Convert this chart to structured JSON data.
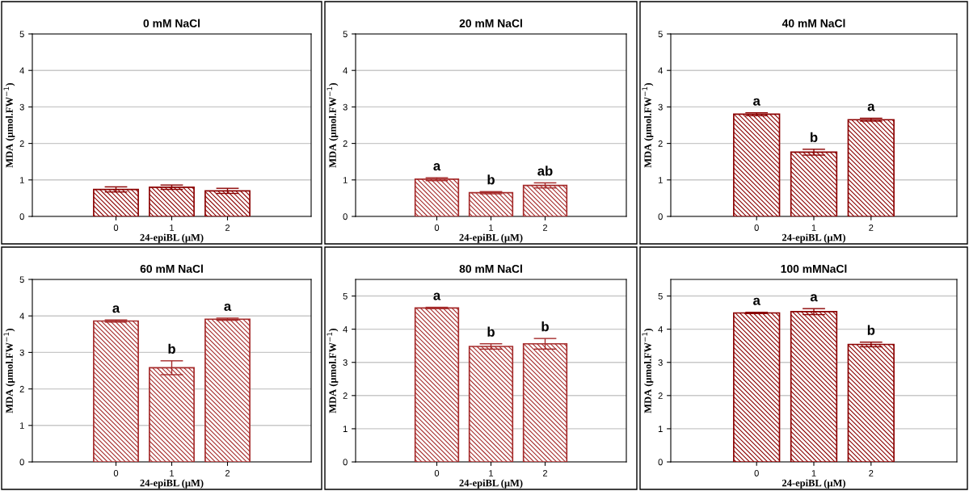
{
  "chart_data": [
    {
      "type": "bar",
      "title": "0 mM NaCl",
      "xlabel": "24-epiBL (µM)",
      "ylabel": "MDA (µmol.FW$^{−1}$)",
      "categories": [
        "0",
        "1",
        "2"
      ],
      "values": [
        0.74,
        0.8,
        0.7
      ],
      "errors": [
        0.07,
        0.06,
        0.07
      ],
      "color": "#8b0000",
      "ylim": [
        0,
        5
      ],
      "yticks": [
        0,
        1,
        2,
        3,
        4,
        5
      ],
      "grid": "y"
    },
    {
      "type": "bar",
      "title": "20 mM NaCl",
      "xlabel": "24-epiBL (µM)",
      "ylabel": "MDA (µmol.FW$^{−1}$)",
      "categories": [
        "0",
        "1",
        "2"
      ],
      "values": [
        1.02,
        0.65,
        0.85
      ],
      "errors": [
        0.04,
        0.03,
        0.07
      ],
      "color": "#a52a2a",
      "ylim": [
        0,
        5
      ],
      "yticks": [
        0,
        1,
        2,
        3,
        4,
        5
      ],
      "grid": "y",
      "annotations": [
        {
          "text": "a",
          "x": "0",
          "y": 1.06
        },
        {
          "text": "b",
          "x": "1",
          "y": 0.68
        },
        {
          "text": "ab",
          "x": "2",
          "y": 0.92
        }
      ]
    },
    {
      "type": "bar",
      "title": "40 mM NaCl",
      "xlabel": "24-epiBL (µM)",
      "ylabel": "MDA (µmol.FW$^{−1}$)",
      "categories": [
        "0",
        "1",
        "2"
      ],
      "values": [
        2.8,
        1.76,
        2.65
      ],
      "errors": [
        0.04,
        0.08,
        0.04
      ],
      "color": "#8b0000",
      "ylim": [
        0,
        5
      ],
      "yticks": [
        0,
        1,
        2,
        3,
        4,
        5
      ],
      "grid": "y",
      "annotations": [
        {
          "text": "a",
          "x": "0",
          "y": 2.84
        },
        {
          "text": "b",
          "x": "1",
          "y": 1.84
        },
        {
          "text": "a",
          "x": "2",
          "y": 2.69
        }
      ]
    },
    {
      "type": "bar",
      "title": "60 mM NaCl",
      "xlabel": "24-epiBL (µM)",
      "ylabel": "MDA (µmol.FW$^{−1}$)",
      "categories": [
        "0",
        "1",
        "2"
      ],
      "values": [
        3.86,
        2.58,
        3.91
      ],
      "errors": [
        0.03,
        0.19,
        0.03
      ],
      "color": "#a52a2a",
      "ylim": [
        0,
        5
      ],
      "yticks": [
        0,
        1,
        2,
        3,
        4,
        5
      ],
      "grid": "y",
      "annotations": [
        {
          "text": "a",
          "x": "0",
          "y": 3.89
        },
        {
          "text": "b",
          "x": "1",
          "y": 2.77
        },
        {
          "text": "a",
          "x": "2",
          "y": 3.94
        }
      ]
    },
    {
      "type": "bar",
      "title": "80 mM NaCl",
      "xlabel": "24-epiBL (µM)",
      "ylabel": "MDA (µmol.FW$^{−1}$)",
      "categories": [
        "0",
        "1",
        "2"
      ],
      "values": [
        4.64,
        3.48,
        3.56
      ],
      "errors": [
        0.02,
        0.08,
        0.16
      ],
      "color": "#a52a2a",
      "ylim": [
        0,
        5.5
      ],
      "yticks": [
        0,
        1,
        2,
        3,
        4,
        5
      ],
      "grid": "y",
      "annotations": [
        {
          "text": "a",
          "x": "0",
          "y": 4.66
        },
        {
          "text": "b",
          "x": "1",
          "y": 3.56
        },
        {
          "text": "b",
          "x": "2",
          "y": 3.72
        }
      ]
    },
    {
      "type": "bar",
      "title": "100 mMNaCl",
      "xlabel": "24-epiBL (µM)",
      "ylabel": "MDA (µmol.FW$^{−1}$)",
      "categories": [
        "0",
        "1",
        "2"
      ],
      "values": [
        4.49,
        4.53,
        3.54
      ],
      "errors": [
        0.02,
        0.09,
        0.07
      ],
      "color": "#8b0000",
      "ylim": [
        0,
        5.5
      ],
      "yticks": [
        0,
        1,
        2,
        3,
        4,
        5
      ],
      "grid": "y",
      "annotations": [
        {
          "text": "a",
          "x": "0",
          "y": 4.51
        },
        {
          "text": "a",
          "x": "1",
          "y": 4.62
        },
        {
          "text": "b",
          "x": "2",
          "y": 3.61
        }
      ]
    }
  ]
}
